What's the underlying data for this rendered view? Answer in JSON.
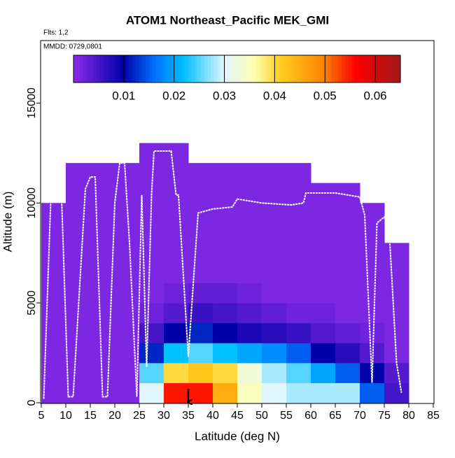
{
  "chart_data": {
    "type": "heatmap",
    "title": "ATOM1 Northeast_Pacific MEK_GMI",
    "annotations": [
      "Flts: 1,2",
      "MMDD: 0729,0801"
    ],
    "x_label": "Latitude (deg N)",
    "y_label": "Altitude (m)",
    "xlim": [
      5,
      85
    ],
    "xticks": [
      5,
      10,
      15,
      20,
      25,
      30,
      35,
      40,
      45,
      50,
      55,
      60,
      65,
      70,
      75,
      80,
      85
    ],
    "ylim": [
      0,
      18200
    ],
    "yticks": [
      0,
      5000,
      10000,
      15000
    ],
    "x_bins": [
      5,
      10,
      15,
      20,
      25,
      30,
      35,
      40,
      45,
      50,
      55,
      60,
      65,
      70,
      75,
      80
    ],
    "y_bins": [
      0,
      1000,
      2000,
      3000,
      4000,
      5000,
      6000,
      7000,
      8000,
      9000,
      10000,
      11000,
      12000,
      13000
    ],
    "z": [
      [
        0.001,
        0.001,
        0.001,
        0.001,
        0.03,
        0.055,
        0.055,
        0.045,
        0.035,
        0.03,
        0.028,
        0.028,
        0.028,
        0.015,
        0.005
      ],
      [
        0.001,
        0.001,
        0.001,
        0.001,
        0.025,
        0.04,
        0.042,
        0.04,
        0.033,
        0.028,
        0.025,
        0.02,
        0.015,
        0.01,
        0.004
      ],
      [
        0.001,
        0.001,
        0.001,
        0.001,
        0.012,
        0.022,
        0.025,
        0.022,
        0.02,
        0.018,
        0.015,
        0.01,
        0.007,
        0.004,
        0.001
      ],
      [
        0.001,
        0.001,
        0.001,
        0.001,
        0.005,
        0.01,
        0.012,
        0.01,
        0.008,
        0.007,
        0.006,
        0.004,
        0.003,
        0.002,
        0.001
      ],
      [
        0.001,
        0.001,
        0.001,
        0.001,
        0.002,
        0.004,
        0.006,
        0.005,
        0.004,
        0.003,
        0.002,
        0.002,
        0.001,
        0.001,
        0.001
      ],
      [
        0.001,
        0.001,
        0.001,
        0.001,
        0.001,
        0.002,
        0.003,
        0.003,
        0.002,
        0.001,
        0.001,
        0.001,
        0.001,
        0.001,
        0.001
      ],
      [
        0.001,
        0.001,
        0.001,
        0.001,
        0.001,
        0.001,
        0.001,
        0.001,
        0.001,
        0.001,
        0.001,
        0.001,
        0.001,
        0.001,
        0.001
      ],
      [
        0.001,
        0.001,
        0.001,
        0.001,
        0.001,
        0.001,
        0.001,
        0.001,
        0.001,
        0.001,
        0.001,
        0.001,
        0.001,
        0.001,
        0.001
      ],
      [
        0.001,
        0.001,
        0.001,
        0.001,
        0.001,
        0.001,
        0.001,
        0.001,
        0.001,
        0.001,
        0.001,
        0.001,
        0.001,
        0.001,
        null
      ],
      [
        0.001,
        0.001,
        0.001,
        0.001,
        0.001,
        0.001,
        0.001,
        0.001,
        0.001,
        0.001,
        0.001,
        0.001,
        0.001,
        0.001,
        null
      ],
      [
        null,
        0.001,
        0.001,
        0.001,
        0.001,
        0.001,
        0.001,
        0.001,
        0.001,
        0.001,
        0.001,
        0.001,
        0.001,
        null,
        null
      ],
      [
        null,
        0.001,
        0.001,
        0.001,
        0.001,
        0.001,
        0.001,
        0.001,
        0.001,
        0.001,
        0.001,
        null,
        null,
        null,
        null
      ],
      [
        null,
        null,
        null,
        null,
        0.001,
        0.001,
        null,
        null,
        null,
        null,
        null,
        null,
        null,
        null,
        null
      ]
    ],
    "colorbar": {
      "lim": [
        0,
        0.065
      ],
      "ticks": [
        0.01,
        0.02,
        0.03,
        0.04,
        0.05,
        0.06
      ],
      "stops": [
        [
          0,
          "#8a2be8"
        ],
        [
          0.01,
          "#0000a8"
        ],
        [
          0.016,
          "#0070ff"
        ],
        [
          0.022,
          "#00c0ff"
        ],
        [
          0.03,
          "#e0f6ff"
        ],
        [
          0.036,
          "#ffffb0"
        ],
        [
          0.041,
          "#ffd020"
        ],
        [
          0.05,
          "#ff8000"
        ],
        [
          0.056,
          "#ff0000"
        ],
        [
          0.065,
          "#a01818"
        ]
      ]
    },
    "track": {
      "x": [
        5.5,
        7,
        8,
        9,
        10.5,
        11.5,
        14,
        15,
        16,
        17.5,
        18.5,
        20,
        21,
        22,
        23,
        24.5,
        25.5,
        26.5,
        27.5,
        28,
        31.5,
        32.5,
        33,
        35,
        37,
        40,
        44,
        45,
        50,
        56,
        58.5,
        59,
        65,
        70,
        71,
        72.5,
        73.5,
        75,
        76,
        77.5,
        78.5
      ],
      "y": [
        200,
        10600,
        11300,
        11300,
        300,
        300,
        10700,
        11300,
        11300,
        300,
        300,
        10000,
        12000,
        12000,
        8000,
        300,
        10400,
        1800,
        10400,
        12600,
        12600,
        10400,
        10400,
        2300,
        9500,
        9700,
        9800,
        10200,
        10000,
        9900,
        10000,
        10500,
        10500,
        10300,
        9400,
        1000,
        9000,
        9300,
        8600,
        2000,
        500
      ],
      "color": "#ffffff"
    },
    "arrow_x": 35
  }
}
